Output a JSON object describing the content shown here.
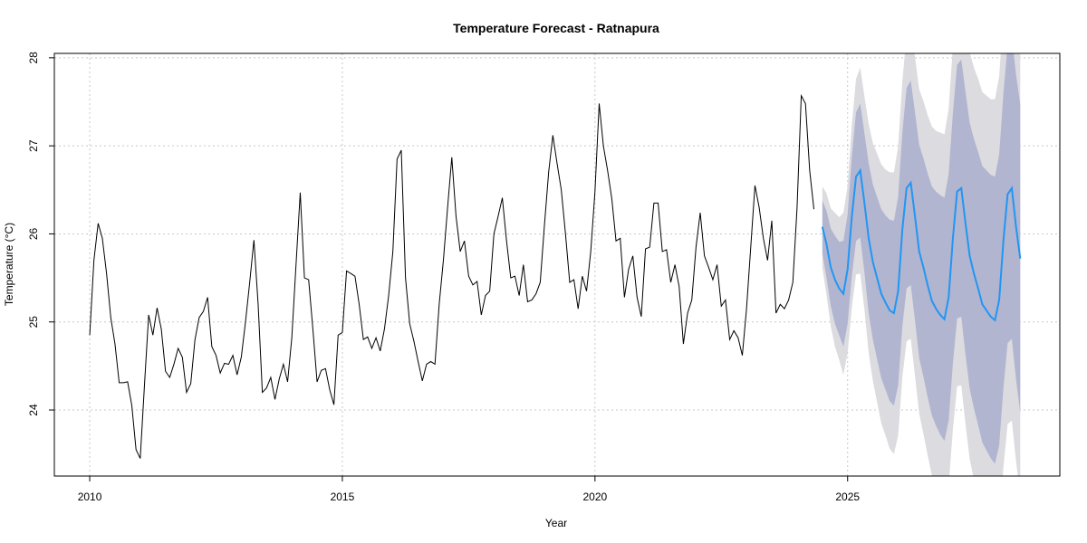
{
  "chart_data": {
    "type": "line",
    "title": "Temperature Forecast - Ratnapura",
    "xlabel": "Year",
    "ylabel": "Temperature (°C)",
    "xlim": [
      2009.3,
      2029.2
    ],
    "ylim": [
      23.25,
      28.05
    ],
    "x_ticks": [
      2010,
      2015,
      2020,
      2025
    ],
    "y_ticks": [
      24,
      25,
      26,
      27,
      28
    ],
    "grid": true,
    "colors": {
      "historical": "#000000",
      "forecast": "#2196f3",
      "band80": "#b1b5d0",
      "band95": "#dbdbe0",
      "grid": "#c8c8c8"
    },
    "series": [
      {
        "role": "historical",
        "start": 2010.0,
        "step": 0.08333,
        "values": [
          24.85,
          25.7,
          26.12,
          25.95,
          25.55,
          25.05,
          24.75,
          24.31,
          24.31,
          24.32,
          24.05,
          23.55,
          23.45,
          24.28,
          25.08,
          24.85,
          25.16,
          24.92,
          24.44,
          24.37,
          24.52,
          24.7,
          24.6,
          24.2,
          24.3,
          24.8,
          25.05,
          25.12,
          25.28,
          24.72,
          24.62,
          24.42,
          24.53,
          24.52,
          24.62,
          24.4,
          24.6,
          25.0,
          25.45,
          25.93,
          25.2,
          24.2,
          24.25,
          24.37,
          24.12,
          24.35,
          24.52,
          24.32,
          24.82,
          25.65,
          26.47,
          25.5,
          25.48,
          24.92,
          24.32,
          24.45,
          24.47,
          24.23,
          24.06,
          24.85,
          24.88,
          25.58,
          25.55,
          25.52,
          25.2,
          24.8,
          24.83,
          24.7,
          24.82,
          24.67,
          24.92,
          25.3,
          25.8,
          26.85,
          26.95,
          25.5,
          24.98,
          24.78,
          24.55,
          24.33,
          24.52,
          24.55,
          24.52,
          25.2,
          25.7,
          26.3,
          26.87,
          26.2,
          25.8,
          25.92,
          25.52,
          25.42,
          25.46,
          25.08,
          25.3,
          25.35,
          26.0,
          26.2,
          26.41,
          25.92,
          25.5,
          25.52,
          25.3,
          25.65,
          25.23,
          25.25,
          25.32,
          25.45,
          26.1,
          26.7,
          27.12,
          26.8,
          26.5,
          26.0,
          25.45,
          25.48,
          25.15,
          25.52,
          25.35,
          25.8,
          26.48,
          27.48,
          27.0,
          26.72,
          26.4,
          25.92,
          25.95,
          25.28,
          25.6,
          25.75,
          25.28,
          25.06,
          25.83,
          25.85,
          26.35,
          26.35,
          25.8,
          25.82,
          25.45,
          25.65,
          25.4,
          24.75,
          25.1,
          25.25,
          25.85,
          26.24,
          25.75,
          25.62,
          25.48,
          25.65,
          25.18,
          25.25,
          24.8,
          24.9,
          24.82,
          24.62,
          25.15,
          25.85,
          26.55,
          26.3,
          25.95,
          25.7,
          26.15,
          25.1,
          25.2,
          25.15,
          25.25,
          25.45,
          26.3,
          27.57,
          27.48,
          26.72,
          26.28
        ]
      },
      {
        "role": "forecast",
        "start": 2024.5,
        "step": 0.08333,
        "values": [
          26.08,
          25.88,
          25.62,
          25.48,
          25.38,
          25.32,
          25.6,
          26.2,
          26.65,
          26.72,
          26.35,
          25.95,
          25.68,
          25.5,
          25.32,
          25.22,
          25.13,
          25.1,
          25.35,
          26.05,
          26.52,
          26.58,
          26.2,
          25.8,
          25.62,
          25.42,
          25.24,
          25.15,
          25.08,
          25.03,
          25.28,
          25.95,
          26.48,
          26.52,
          26.12,
          25.75,
          25.55,
          25.38,
          25.2,
          25.13,
          25.06,
          25.02,
          25.25,
          25.92,
          26.45,
          26.52,
          26.08,
          25.72
        ],
        "lo80": [
          25.78,
          25.5,
          25.18,
          24.98,
          24.85,
          24.72,
          24.98,
          25.52,
          25.92,
          25.96,
          25.56,
          25.1,
          24.8,
          24.58,
          24.36,
          24.23,
          24.1,
          24.05,
          24.28,
          24.95,
          25.38,
          25.42,
          25.02,
          24.59,
          24.38,
          24.15,
          23.94,
          23.82,
          23.72,
          23.65,
          23.88,
          24.53,
          25.04,
          25.06,
          24.63,
          24.24,
          24.02,
          23.83,
          23.63,
          23.54,
          23.45,
          23.39,
          23.6,
          24.25,
          24.76,
          24.81,
          24.35,
          23.97
        ],
        "hi80": [
          26.38,
          26.26,
          26.06,
          25.98,
          25.91,
          25.92,
          26.22,
          26.88,
          27.38,
          27.48,
          27.14,
          26.8,
          26.56,
          26.42,
          26.28,
          26.21,
          26.16,
          26.15,
          26.42,
          27.15,
          27.66,
          27.74,
          27.38,
          27.01,
          26.86,
          26.69,
          26.54,
          26.48,
          26.44,
          26.41,
          26.68,
          27.37,
          27.92,
          27.98,
          27.61,
          27.26,
          27.08,
          26.93,
          26.77,
          26.72,
          26.67,
          26.65,
          26.9,
          27.59,
          28.14,
          28.23,
          27.81,
          27.47
        ],
        "lo95": [
          25.62,
          25.3,
          24.95,
          24.72,
          24.57,
          24.4,
          24.65,
          25.16,
          25.54,
          25.55,
          25.14,
          24.65,
          24.33,
          24.09,
          23.85,
          23.71,
          23.56,
          23.5,
          23.71,
          24.37,
          24.78,
          24.81,
          24.39,
          23.96,
          23.73,
          23.49,
          23.26,
          23.13,
          23.01,
          22.93,
          23.14,
          23.78,
          24.27,
          24.28,
          23.84,
          23.44,
          23.21,
          23.0,
          22.79,
          22.69,
          22.59,
          22.51,
          22.71,
          23.35,
          23.84,
          23.88,
          23.42,
          23.03
        ],
        "hi95": [
          26.54,
          26.46,
          26.29,
          26.24,
          26.19,
          26.24,
          26.55,
          27.24,
          27.76,
          27.89,
          27.56,
          27.25,
          27.03,
          26.91,
          26.79,
          26.73,
          26.7,
          26.7,
          26.99,
          27.73,
          28.26,
          28.35,
          28.01,
          27.64,
          27.51,
          27.35,
          27.22,
          27.17,
          27.15,
          27.13,
          27.42,
          28.12,
          28.69,
          28.76,
          28.4,
          28.06,
          27.89,
          27.76,
          27.61,
          27.57,
          27.53,
          27.53,
          27.79,
          28.49,
          29.06,
          29.16,
          28.74,
          28.41
        ]
      }
    ]
  }
}
